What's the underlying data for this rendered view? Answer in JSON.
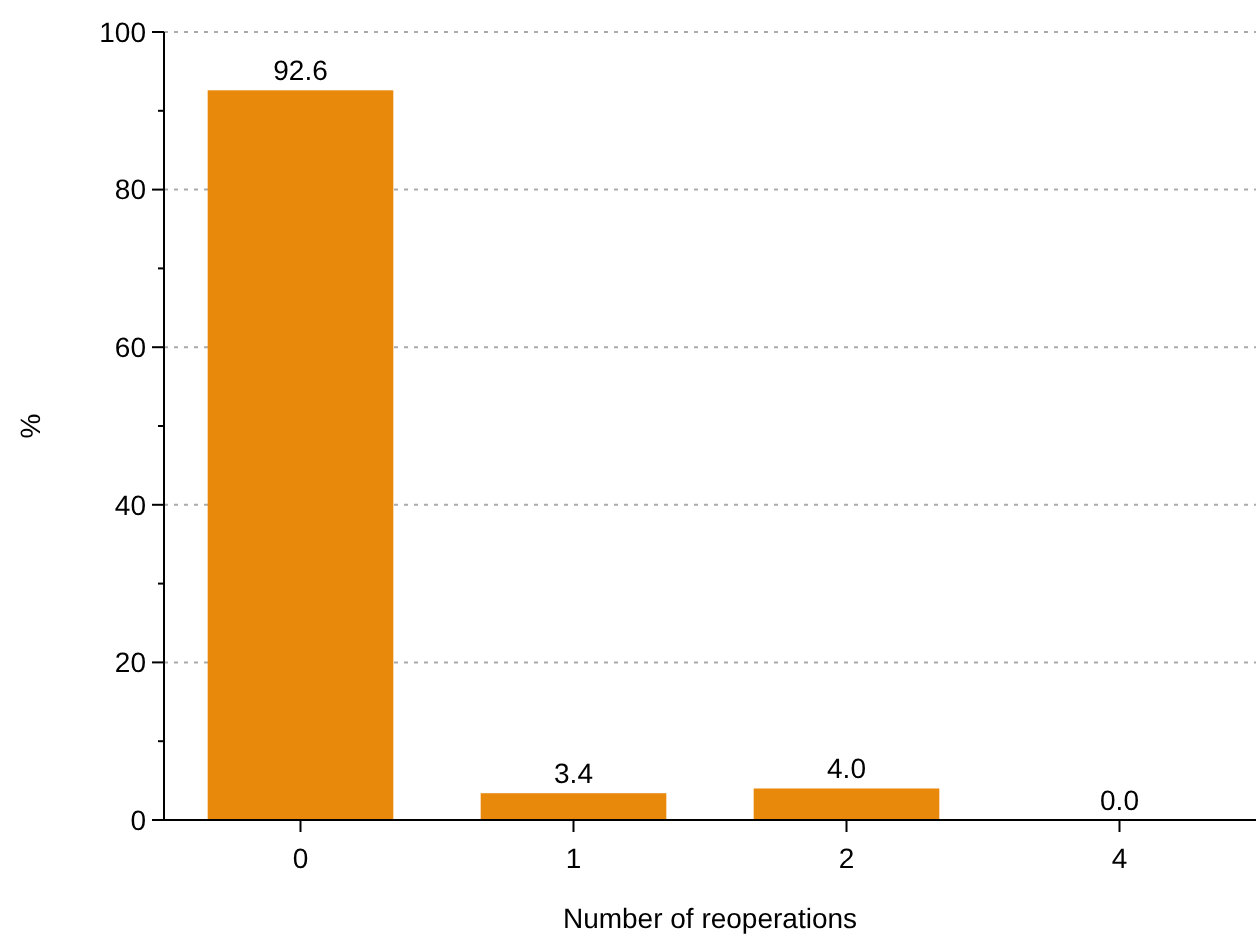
{
  "chart_data": {
    "type": "bar",
    "xlabel": "Number of reoperations",
    "ylabel": "%",
    "categories": [
      "0",
      "1",
      "2",
      "4"
    ],
    "values": [
      92.6,
      3.4,
      4.0,
      0.0
    ],
    "value_labels": [
      "92.6",
      "3.4",
      "4.0",
      "0.0"
    ],
    "color": "#e8890c",
    "ylim": [
      0,
      100
    ],
    "yticks": [
      0,
      {
        "value": 10,
        "label": null
      },
      20,
      {
        "value": 30,
        "label": null
      },
      40,
      {
        "value": 50,
        "label": null
      },
      60,
      {
        "value": 70,
        "label": null
      },
      80,
      {
        "value": 90,
        "label": null
      },
      100
    ],
    "grid": "y"
  }
}
